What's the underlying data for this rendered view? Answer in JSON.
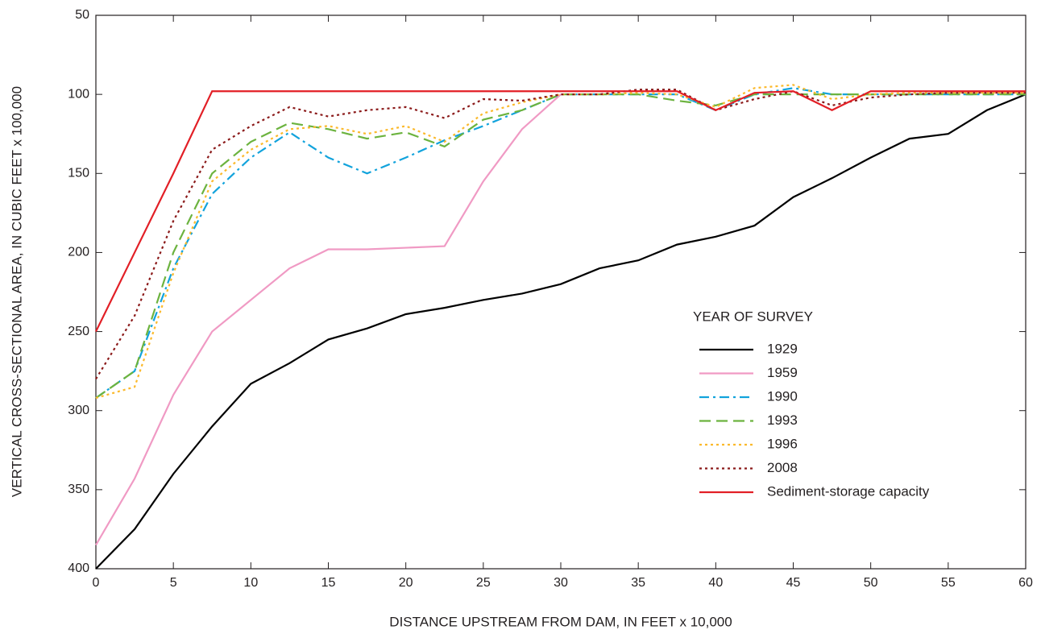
{
  "chart_data": {
    "type": "line",
    "xlabel": "DISTANCE UPSTREAM FROM DAM, IN FEET x 10,000",
    "ylabel": "VERTICAL CROSS-SECTIONAL AREA, IN CUBIC FEET x 100,000",
    "legend_title": "YEAR OF SURVEY",
    "x": [
      0,
      2.5,
      5,
      7.5,
      10,
      12.5,
      15,
      17.5,
      20,
      22.5,
      25,
      27.5,
      30,
      32.5,
      35,
      37.5,
      40,
      42.5,
      45,
      47.5,
      50,
      52.5,
      55,
      57.5,
      60
    ],
    "xlim": [
      0,
      60
    ],
    "xticks": [
      0,
      5,
      10,
      15,
      20,
      25,
      30,
      35,
      40,
      45,
      50,
      55,
      60
    ],
    "ylim": [
      400,
      50
    ],
    "yticks": [
      50,
      100,
      150,
      200,
      250,
      300,
      350,
      400
    ],
    "y_inverted": true,
    "grid": false,
    "series": [
      {
        "name": "1929",
        "color": "#000000",
        "style": "solid",
        "values": [
          400,
          375,
          340,
          310,
          283,
          270,
          255,
          248,
          239,
          235,
          230,
          226,
          220,
          210,
          205,
          195,
          190,
          183,
          165,
          153,
          140,
          128,
          125,
          110,
          100
        ]
      },
      {
        "name": "1959",
        "color": "#f09ac4",
        "style": "solid",
        "values": [
          385,
          343,
          290,
          250,
          230,
          210,
          198,
          198,
          197,
          196,
          155,
          122,
          100,
          null,
          null,
          null,
          null,
          null,
          null,
          null,
          null,
          null,
          null,
          null,
          null
        ]
      },
      {
        "name": "1990",
        "color": "#12a3dc",
        "style": "dashdot",
        "values": [
          292,
          275,
          210,
          163,
          140,
          124,
          140,
          150,
          140,
          129,
          120,
          110,
          100,
          100,
          100,
          100,
          110,
          100,
          96,
          100,
          100,
          100,
          100,
          100,
          100
        ]
      },
      {
        "name": "1993",
        "color": "#6cb33f",
        "style": "dashed",
        "values": [
          292,
          275,
          200,
          150,
          130,
          118,
          122,
          128,
          124,
          133,
          116,
          110,
          100,
          100,
          100,
          104,
          107,
          100,
          100,
          100,
          100,
          100,
          100,
          100,
          100
        ]
      },
      {
        "name": "1996",
        "color": "#fbb92b",
        "style": "dotted",
        "values": [
          292,
          285,
          213,
          155,
          135,
          122,
          120,
          125,
          120,
          130,
          112,
          105,
          100,
          100,
          99,
          100,
          108,
          96,
          94,
          103,
          100,
          99,
          99,
          99,
          99
        ]
      },
      {
        "name": "2008",
        "color": "#8b1a1a",
        "style": "dotted",
        "values": [
          280,
          240,
          180,
          135,
          120,
          108,
          114,
          110,
          108,
          115,
          103,
          104,
          100,
          100,
          97,
          97,
          110,
          103,
          98,
          107,
          102,
          100,
          99,
          99,
          99
        ]
      },
      {
        "name": "Sediment-storage capacity",
        "color": "#e21f26",
        "style": "solid",
        "values": [
          250,
          200,
          150,
          98,
          98,
          98,
          98,
          98,
          98,
          98,
          98,
          98,
          98,
          98,
          98,
          98,
          110,
          99,
          98,
          110,
          98,
          98,
          98,
          98,
          98
        ]
      }
    ]
  }
}
